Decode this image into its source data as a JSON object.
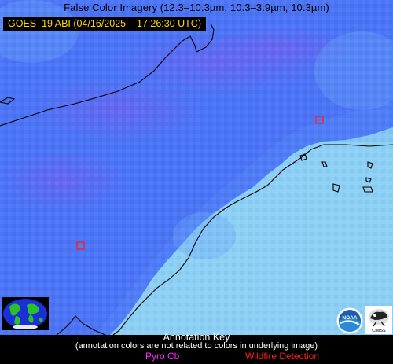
{
  "title": "False Color Imagery (12.3–10.3µm, 10.3–3.9µm, 10.3µm)",
  "timestamp": "GOES–19 ABI (04/16/2025 – 17:26:30 UTC)",
  "annotation_key": {
    "title": "Annotation Key",
    "note": "(annotation colors are not related to colors in underlying image)",
    "items": [
      {
        "label": "Pyro Cb",
        "color": "#ff2cff"
      },
      {
        "label": "Wildfire Detection",
        "color": "#ff1d1d"
      }
    ]
  },
  "logos": {
    "globe": "globe-logo",
    "noaa": "NOAA",
    "cimss": "CIMSS"
  },
  "colors": {
    "cloud_blue": "#4f7df9",
    "cloud_purple": "#6b62f2",
    "clear_cyan": "#8dd4f7",
    "coastline": "#000000"
  }
}
